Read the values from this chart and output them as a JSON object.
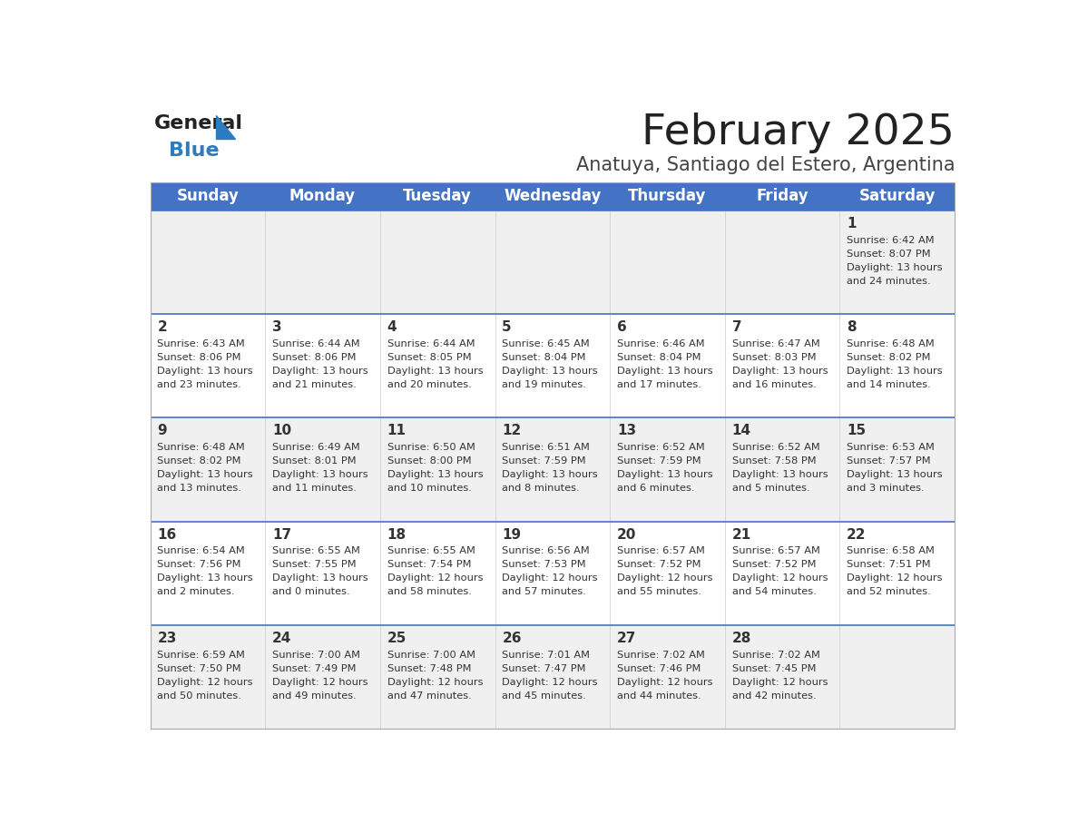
{
  "title": "February 2025",
  "subtitle": "Anatuya, Santiago del Estero, Argentina",
  "header_bg_color": "#4472C4",
  "header_text_color": "#FFFFFF",
  "days_of_week": [
    "Sunday",
    "Monday",
    "Tuesday",
    "Wednesday",
    "Thursday",
    "Friday",
    "Saturday"
  ],
  "row_bg_even": "#F0F0F0",
  "row_bg_odd": "#FFFFFF",
  "cell_border_color": "#4472C4",
  "title_color": "#222222",
  "subtitle_color": "#444444",
  "day_number_color": "#333333",
  "info_text_color": "#333333",
  "logo_general_color": "#222222",
  "logo_blue_color": "#2E7BBF",
  "calendar_data": [
    [
      {
        "day": "",
        "sunrise": "",
        "sunset": "",
        "daylight": ""
      },
      {
        "day": "",
        "sunrise": "",
        "sunset": "",
        "daylight": ""
      },
      {
        "day": "",
        "sunrise": "",
        "sunset": "",
        "daylight": ""
      },
      {
        "day": "",
        "sunrise": "",
        "sunset": "",
        "daylight": ""
      },
      {
        "day": "",
        "sunrise": "",
        "sunset": "",
        "daylight": ""
      },
      {
        "day": "",
        "sunrise": "",
        "sunset": "",
        "daylight": ""
      },
      {
        "day": "1",
        "sunrise": "6:42 AM",
        "sunset": "8:07 PM",
        "daylight_hours": "13",
        "daylight_minutes": "24"
      }
    ],
    [
      {
        "day": "2",
        "sunrise": "6:43 AM",
        "sunset": "8:06 PM",
        "daylight_hours": "13",
        "daylight_minutes": "23"
      },
      {
        "day": "3",
        "sunrise": "6:44 AM",
        "sunset": "8:06 PM",
        "daylight_hours": "13",
        "daylight_minutes": "21"
      },
      {
        "day": "4",
        "sunrise": "6:44 AM",
        "sunset": "8:05 PM",
        "daylight_hours": "13",
        "daylight_minutes": "20"
      },
      {
        "day": "5",
        "sunrise": "6:45 AM",
        "sunset": "8:04 PM",
        "daylight_hours": "13",
        "daylight_minutes": "19"
      },
      {
        "day": "6",
        "sunrise": "6:46 AM",
        "sunset": "8:04 PM",
        "daylight_hours": "13",
        "daylight_minutes": "17"
      },
      {
        "day": "7",
        "sunrise": "6:47 AM",
        "sunset": "8:03 PM",
        "daylight_hours": "13",
        "daylight_minutes": "16"
      },
      {
        "day": "8",
        "sunrise": "6:48 AM",
        "sunset": "8:02 PM",
        "daylight_hours": "13",
        "daylight_minutes": "14"
      }
    ],
    [
      {
        "day": "9",
        "sunrise": "6:48 AM",
        "sunset": "8:02 PM",
        "daylight_hours": "13",
        "daylight_minutes": "13"
      },
      {
        "day": "10",
        "sunrise": "6:49 AM",
        "sunset": "8:01 PM",
        "daylight_hours": "13",
        "daylight_minutes": "11"
      },
      {
        "day": "11",
        "sunrise": "6:50 AM",
        "sunset": "8:00 PM",
        "daylight_hours": "13",
        "daylight_minutes": "10"
      },
      {
        "day": "12",
        "sunrise": "6:51 AM",
        "sunset": "7:59 PM",
        "daylight_hours": "13",
        "daylight_minutes": "8"
      },
      {
        "day": "13",
        "sunrise": "6:52 AM",
        "sunset": "7:59 PM",
        "daylight_hours": "13",
        "daylight_minutes": "6"
      },
      {
        "day": "14",
        "sunrise": "6:52 AM",
        "sunset": "7:58 PM",
        "daylight_hours": "13",
        "daylight_minutes": "5"
      },
      {
        "day": "15",
        "sunrise": "6:53 AM",
        "sunset": "7:57 PM",
        "daylight_hours": "13",
        "daylight_minutes": "3"
      }
    ],
    [
      {
        "day": "16",
        "sunrise": "6:54 AM",
        "sunset": "7:56 PM",
        "daylight_hours": "13",
        "daylight_minutes": "2"
      },
      {
        "day": "17",
        "sunrise": "6:55 AM",
        "sunset": "7:55 PM",
        "daylight_hours": "13",
        "daylight_minutes": "0"
      },
      {
        "day": "18",
        "sunrise": "6:55 AM",
        "sunset": "7:54 PM",
        "daylight_hours": "12",
        "daylight_minutes": "58"
      },
      {
        "day": "19",
        "sunrise": "6:56 AM",
        "sunset": "7:53 PM",
        "daylight_hours": "12",
        "daylight_minutes": "57"
      },
      {
        "day": "20",
        "sunrise": "6:57 AM",
        "sunset": "7:52 PM",
        "daylight_hours": "12",
        "daylight_minutes": "55"
      },
      {
        "day": "21",
        "sunrise": "6:57 AM",
        "sunset": "7:52 PM",
        "daylight_hours": "12",
        "daylight_minutes": "54"
      },
      {
        "day": "22",
        "sunrise": "6:58 AM",
        "sunset": "7:51 PM",
        "daylight_hours": "12",
        "daylight_minutes": "52"
      }
    ],
    [
      {
        "day": "23",
        "sunrise": "6:59 AM",
        "sunset": "7:50 PM",
        "daylight_hours": "12",
        "daylight_minutes": "50"
      },
      {
        "day": "24",
        "sunrise": "7:00 AM",
        "sunset": "7:49 PM",
        "daylight_hours": "12",
        "daylight_minutes": "49"
      },
      {
        "day": "25",
        "sunrise": "7:00 AM",
        "sunset": "7:48 PM",
        "daylight_hours": "12",
        "daylight_minutes": "47"
      },
      {
        "day": "26",
        "sunrise": "7:01 AM",
        "sunset": "7:47 PM",
        "daylight_hours": "12",
        "daylight_minutes": "45"
      },
      {
        "day": "27",
        "sunrise": "7:02 AM",
        "sunset": "7:46 PM",
        "daylight_hours": "12",
        "daylight_minutes": "44"
      },
      {
        "day": "28",
        "sunrise": "7:02 AM",
        "sunset": "7:45 PM",
        "daylight_hours": "12",
        "daylight_minutes": "42"
      },
      {
        "day": "",
        "sunrise": "",
        "sunset": "",
        "daylight_hours": "",
        "daylight_minutes": ""
      }
    ]
  ]
}
